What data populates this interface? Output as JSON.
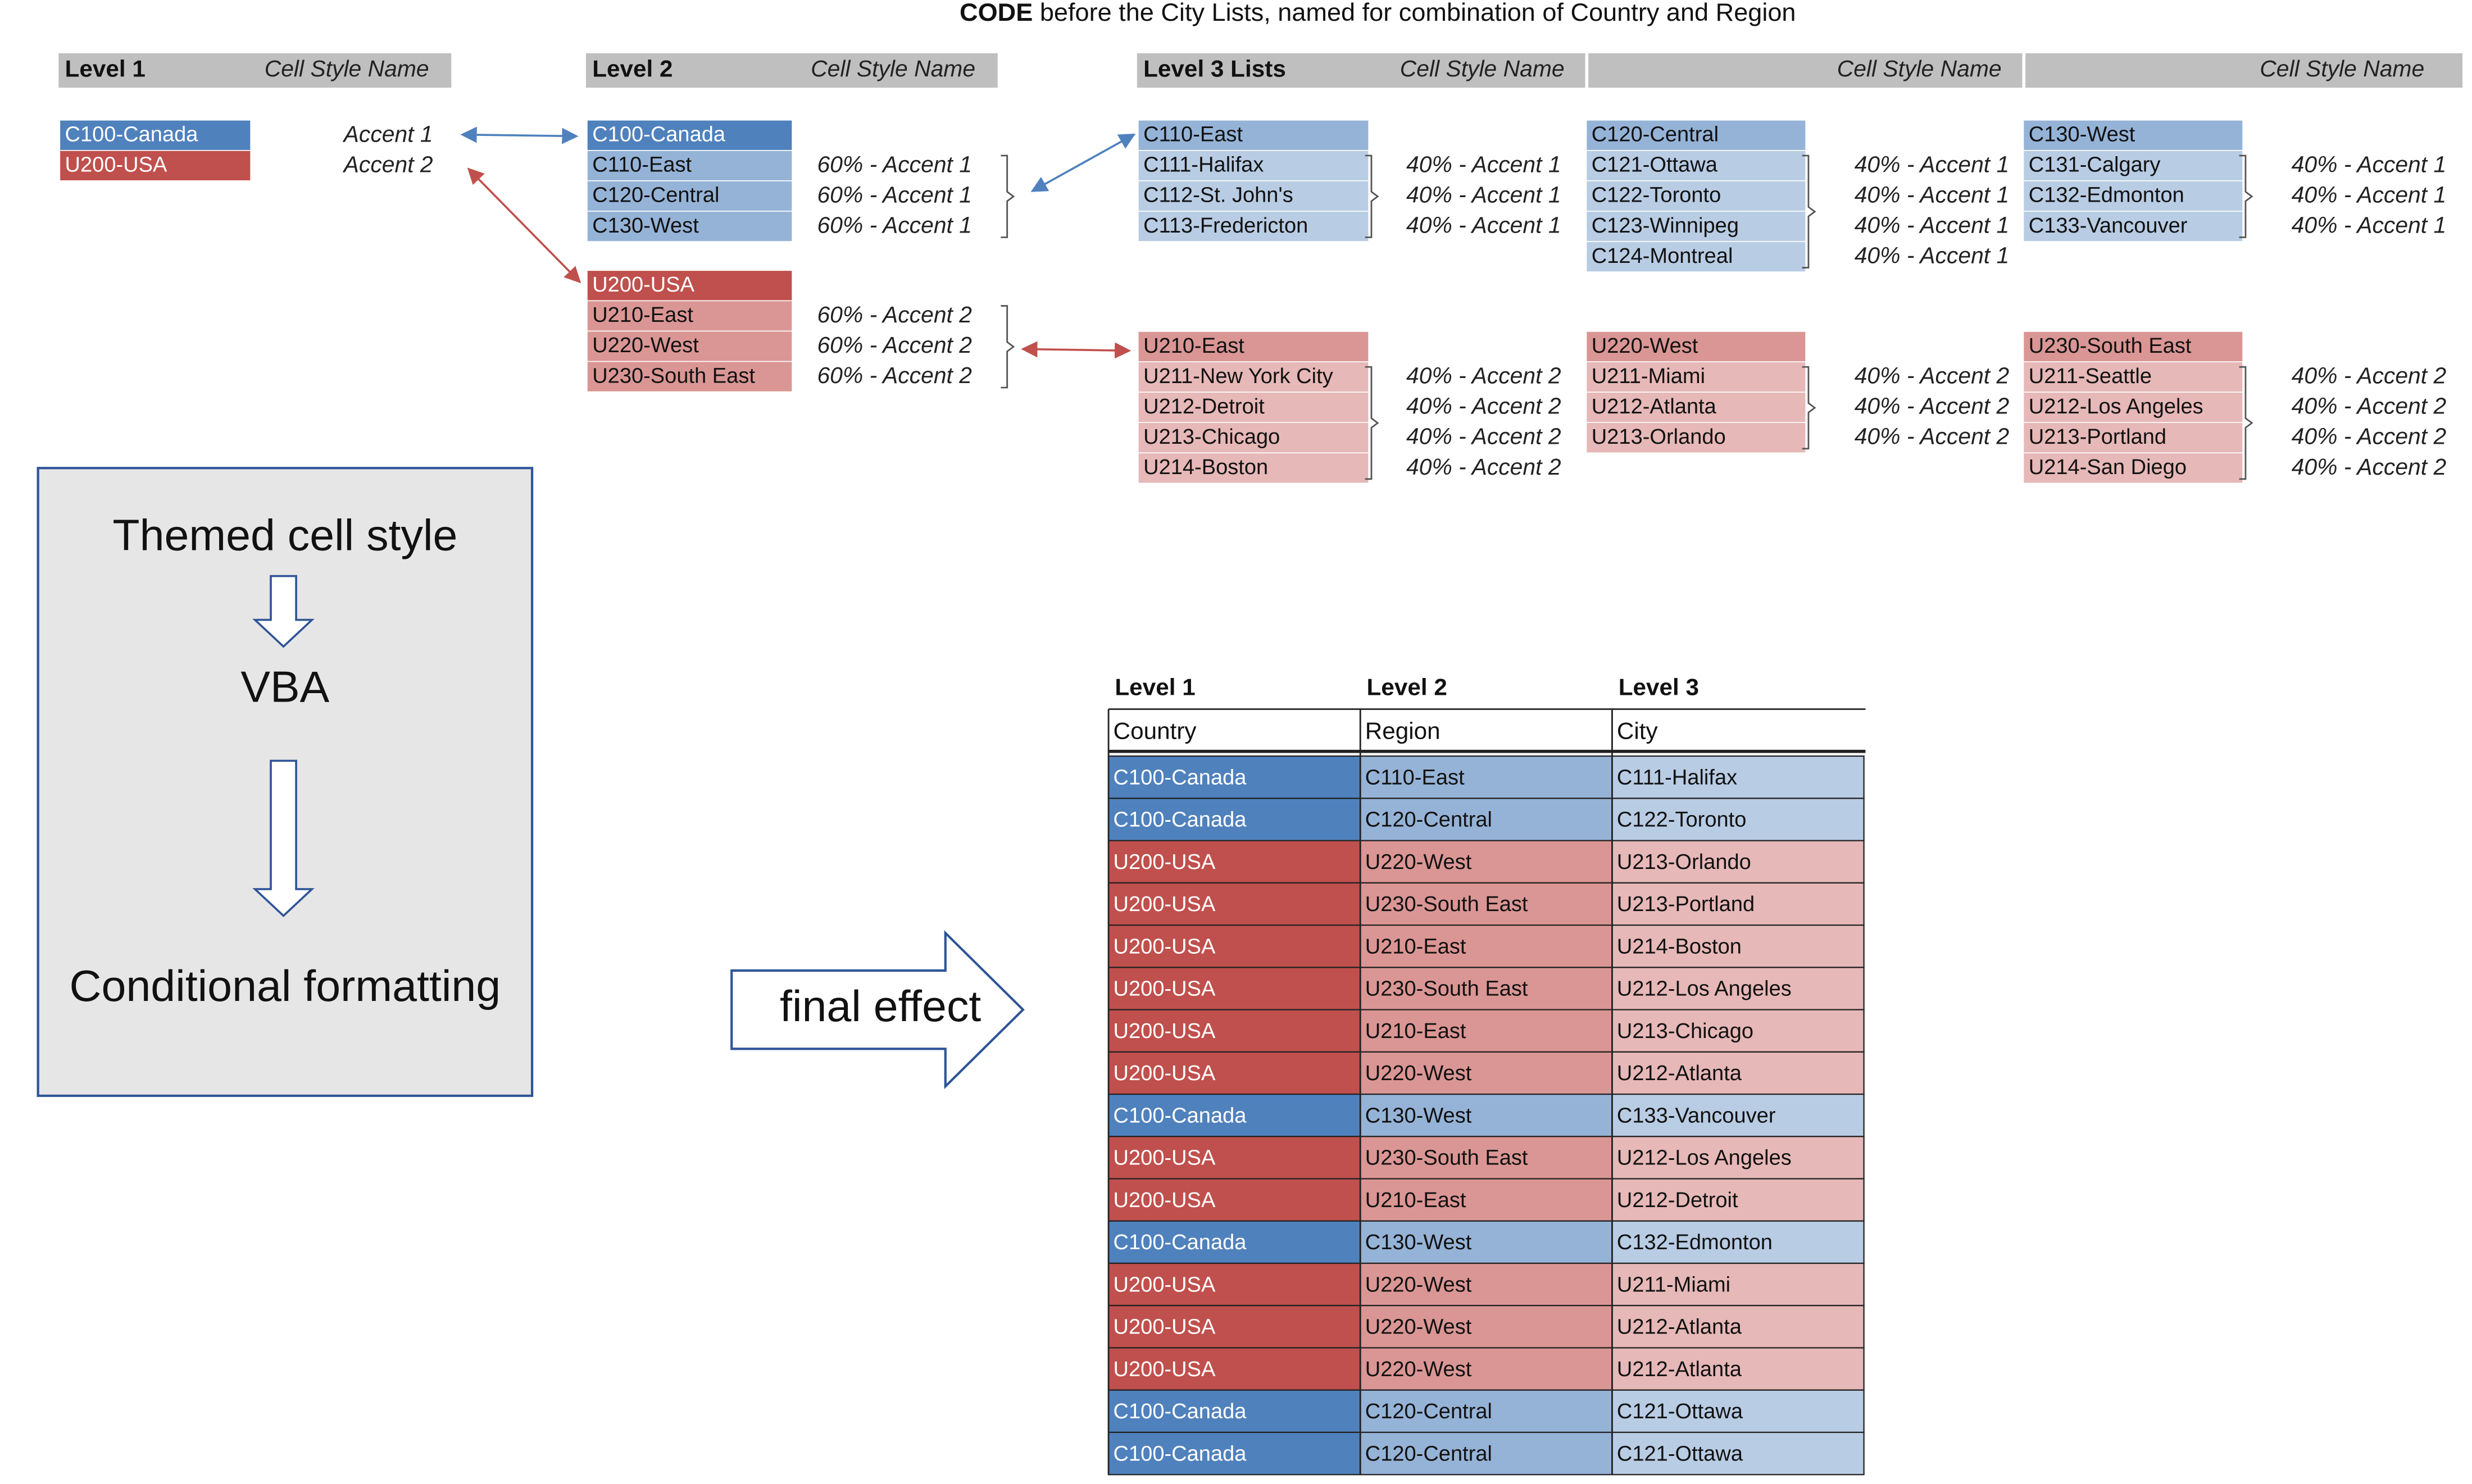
{
  "header": {
    "title_bold": "CODE",
    "title_rest": "before the City Lists, named for combination of Country and Region"
  },
  "level1": {
    "header": "Level 1",
    "style_header": "Cell Style Name",
    "items": [
      {
        "code": "C100-Canada",
        "style": "Accent 1"
      },
      {
        "code": "U200-USA",
        "style": "Accent 2"
      }
    ]
  },
  "level2": {
    "header": "Level 2",
    "style_header": "Cell Style Name",
    "groups": [
      {
        "parent": "C100-Canada",
        "items": [
          {
            "code": "C110-East",
            "style": "60% - Accent 1"
          },
          {
            "code": "C120-Central",
            "style": "60% - Accent 1"
          },
          {
            "code": "C130-West",
            "style": "60% - Accent 1"
          }
        ]
      },
      {
        "parent": "U200-USA",
        "items": [
          {
            "code": "U210-East",
            "style": "60% - Accent 2"
          },
          {
            "code": "U220-West",
            "style": "60% - Accent 2"
          },
          {
            "code": "U230-South East",
            "style": "60% - Accent 2"
          }
        ]
      }
    ]
  },
  "level3": {
    "header": "Level 3 Lists",
    "style_headers": [
      "Cell Style Name",
      "Cell Style Name",
      "Cell Style Name"
    ],
    "blocks": [
      {
        "parent": "C110-East",
        "items": [
          {
            "code": "C111-Halifax",
            "style": "40% - Accent 1"
          },
          {
            "code": "C112-St. John's",
            "style": "40% - Accent 1"
          },
          {
            "code": "C113-Fredericton",
            "style": "40% - Accent 1"
          }
        ]
      },
      {
        "parent": "C120-Central",
        "items": [
          {
            "code": "C121-Ottawa",
            "style": "40% - Accent 1"
          },
          {
            "code": "C122-Toronto",
            "style": "40% - Accent 1"
          },
          {
            "code": "C123-Winnipeg",
            "style": "40% - Accent 1"
          },
          {
            "code": "C124-Montreal",
            "style": "40% - Accent 1"
          }
        ]
      },
      {
        "parent": "C130-West",
        "items": [
          {
            "code": "C131-Calgary",
            "style": "40% - Accent 1"
          },
          {
            "code": "C132-Edmonton",
            "style": "40% - Accent 1"
          },
          {
            "code": "C133-Vancouver",
            "style": "40% - Accent 1"
          }
        ]
      },
      {
        "parent": "U210-East",
        "items": [
          {
            "code": "U211-New York City",
            "style": "40% - Accent 2"
          },
          {
            "code": "U212-Detroit",
            "style": "40% - Accent 2"
          },
          {
            "code": "U213-Chicago",
            "style": "40% - Accent 2"
          },
          {
            "code": "U214-Boston",
            "style": "40% - Accent 2"
          }
        ]
      },
      {
        "parent": "U220-West",
        "items": [
          {
            "code": "U211-Miami",
            "style": "40% - Accent 2"
          },
          {
            "code": "U212-Atlanta",
            "style": "40% - Accent 2"
          },
          {
            "code": "U213-Orlando",
            "style": "40% - Accent 2"
          }
        ]
      },
      {
        "parent": "U230-South East",
        "items": [
          {
            "code": "U211-Seattle",
            "style": "40% - Accent 2"
          },
          {
            "code": "U212-Los Angeles",
            "style": "40% - Accent 2"
          },
          {
            "code": "U213-Portland",
            "style": "40% - Accent 2"
          },
          {
            "code": "U214-San Diego",
            "style": "40% - Accent 2"
          }
        ]
      }
    ]
  },
  "flow": {
    "steps": [
      "Themed cell style",
      "VBA",
      "Conditional formatting"
    ],
    "arrow_label": "final effect"
  },
  "table": {
    "levels": [
      "Level 1",
      "Level 2",
      "Level 3"
    ],
    "columns": [
      "Country",
      "Region",
      "City"
    ],
    "rows": [
      [
        "C100-Canada",
        "C110-East",
        "C111-Halifax"
      ],
      [
        "C100-Canada",
        "C120-Central",
        "C122-Toronto"
      ],
      [
        "U200-USA",
        "U220-West",
        "U213-Orlando"
      ],
      [
        "U200-USA",
        "U230-South East",
        "U213-Portland"
      ],
      [
        "U200-USA",
        "U210-East",
        "U214-Boston"
      ],
      [
        "U200-USA",
        "U230-South East",
        "U212-Los Angeles"
      ],
      [
        "U200-USA",
        "U210-East",
        "U213-Chicago"
      ],
      [
        "U200-USA",
        "U220-West",
        "U212-Atlanta"
      ],
      [
        "C100-Canada",
        "C130-West",
        "C133-Vancouver"
      ],
      [
        "U200-USA",
        "U230-South East",
        "U212-Los Angeles"
      ],
      [
        "U200-USA",
        "U210-East",
        "U212-Detroit"
      ],
      [
        "C100-Canada",
        "C130-West",
        "C132-Edmonton"
      ],
      [
        "U200-USA",
        "U220-West",
        "U211-Miami"
      ],
      [
        "U200-USA",
        "U220-West",
        "U212-Atlanta"
      ],
      [
        "U200-USA",
        "U220-West",
        "U212-Atlanta"
      ],
      [
        "C100-Canada",
        "C120-Central",
        "C121-Ottawa"
      ],
      [
        "C100-Canada",
        "C120-Central",
        "C121-Ottawa"
      ]
    ]
  }
}
